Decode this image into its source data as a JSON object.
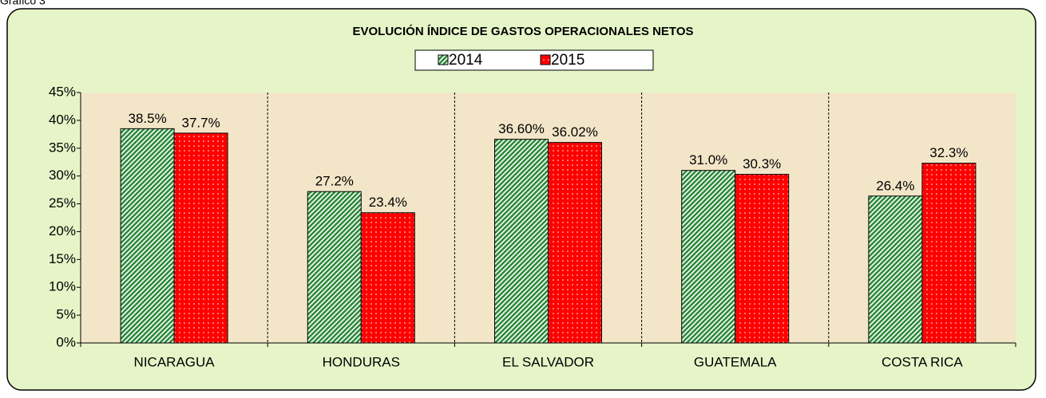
{
  "caption": "Gráfico 3",
  "chart_data": {
    "type": "bar",
    "title": "EVOLUCIÓN ÍNDICE DE GASTOS OPERACIONALES NETOS",
    "categories": [
      "NICARAGUA",
      "HONDURAS",
      "EL SALVADOR",
      "GUATEMALA",
      "COSTA RICA"
    ],
    "series": [
      {
        "name": "2014",
        "color": "#2e8b3c",
        "values": [
          38.5,
          27.2,
          36.6,
          31.0,
          26.4
        ],
        "value_labels": [
          "38.5%",
          "27.2%",
          "36.60%",
          "31.0%",
          "26.4%"
        ]
      },
      {
        "name": "2015",
        "color": "#ff0000",
        "values": [
          37.7,
          23.4,
          36.02,
          30.3,
          32.3
        ],
        "value_labels": [
          "37.7%",
          "23.4%",
          "36.02%",
          "30.3%",
          "32.3%"
        ]
      }
    ],
    "ylim": [
      0,
      45
    ],
    "yticks": [
      {
        "value": 0,
        "label": "0%"
      },
      {
        "value": 5,
        "label": "5%"
      },
      {
        "value": 10,
        "label": "10%"
      },
      {
        "value": 15,
        "label": "15%"
      },
      {
        "value": 20,
        "label": "20%"
      },
      {
        "value": 25,
        "label": "25%"
      },
      {
        "value": 30,
        "label": "30%"
      },
      {
        "value": 35,
        "label": "35%"
      },
      {
        "value": 40,
        "label": "40%"
      },
      {
        "value": 45,
        "label": "45%"
      }
    ],
    "legend": "top"
  }
}
